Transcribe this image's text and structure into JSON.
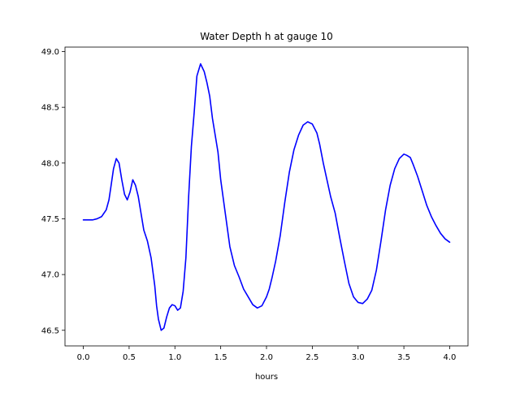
{
  "colors": {
    "series_line": "#0000ff",
    "axes": "#000000",
    "background": "#ffffff"
  },
  "chart_data": {
    "type": "line",
    "title": "Water Depth h at gauge 10",
    "xlabel": "hours",
    "ylabel": "",
    "xlim": [
      -0.2,
      4.2
    ],
    "ylim": [
      46.36,
      49.04
    ],
    "grid": false,
    "legend": "none",
    "x_ticks": [
      0.0,
      0.5,
      1.0,
      1.5,
      2.0,
      2.5,
      3.0,
      3.5,
      4.0
    ],
    "x_tick_labels": [
      "0.0",
      "0.5",
      "1.0",
      "1.5",
      "2.0",
      "2.5",
      "3.0",
      "3.5",
      "4.0"
    ],
    "y_ticks": [
      46.5,
      47.0,
      47.5,
      48.0,
      48.5,
      49.0
    ],
    "y_tick_labels": [
      "46.5",
      "47.0",
      "47.5",
      "48.0",
      "48.5",
      "49.0"
    ],
    "series": [
      {
        "color": "#0000ff",
        "x": [
          0.0,
          0.1,
          0.15,
          0.2,
          0.25,
          0.28,
          0.3,
          0.33,
          0.36,
          0.39,
          0.42,
          0.45,
          0.48,
          0.51,
          0.54,
          0.57,
          0.6,
          0.63,
          0.66,
          0.7,
          0.74,
          0.78,
          0.8,
          0.82,
          0.85,
          0.88,
          0.91,
          0.94,
          0.97,
          1.0,
          1.03,
          1.06,
          1.09,
          1.12,
          1.15,
          1.18,
          1.21,
          1.24,
          1.28,
          1.32,
          1.35,
          1.38,
          1.41,
          1.44,
          1.47,
          1.5,
          1.55,
          1.6,
          1.65,
          1.7,
          1.75,
          1.8,
          1.85,
          1.9,
          1.95,
          2.0,
          2.03,
          2.06,
          2.1,
          2.15,
          2.2,
          2.25,
          2.3,
          2.35,
          2.4,
          2.45,
          2.5,
          2.55,
          2.58,
          2.62,
          2.66,
          2.7,
          2.75,
          2.8,
          2.85,
          2.9,
          2.95,
          3.0,
          3.05,
          3.1,
          3.15,
          3.2,
          3.25,
          3.3,
          3.35,
          3.4,
          3.45,
          3.5,
          3.53,
          3.57,
          3.6,
          3.65,
          3.7,
          3.75,
          3.8,
          3.85,
          3.9,
          3.95,
          4.0
        ],
        "y": [
          47.49,
          47.49,
          47.5,
          47.52,
          47.58,
          47.67,
          47.78,
          47.95,
          48.04,
          48.0,
          47.85,
          47.72,
          47.67,
          47.74,
          47.85,
          47.8,
          47.7,
          47.55,
          47.4,
          47.3,
          47.15,
          46.9,
          46.72,
          46.6,
          46.5,
          46.52,
          46.62,
          46.7,
          46.73,
          46.72,
          46.68,
          46.7,
          46.85,
          47.15,
          47.7,
          48.15,
          48.45,
          48.78,
          48.89,
          48.82,
          48.72,
          48.6,
          48.4,
          48.25,
          48.1,
          47.85,
          47.55,
          47.25,
          47.08,
          46.98,
          46.87,
          46.8,
          46.73,
          46.7,
          46.72,
          46.8,
          46.87,
          46.97,
          47.12,
          47.35,
          47.65,
          47.92,
          48.12,
          48.25,
          48.34,
          48.37,
          48.35,
          48.27,
          48.17,
          48.0,
          47.85,
          47.7,
          47.55,
          47.33,
          47.12,
          46.92,
          46.8,
          46.75,
          46.74,
          46.78,
          46.86,
          47.04,
          47.3,
          47.58,
          47.8,
          47.95,
          48.04,
          48.08,
          48.07,
          48.05,
          47.99,
          47.88,
          47.75,
          47.62,
          47.52,
          47.44,
          47.37,
          47.32,
          47.29
        ]
      }
    ]
  }
}
